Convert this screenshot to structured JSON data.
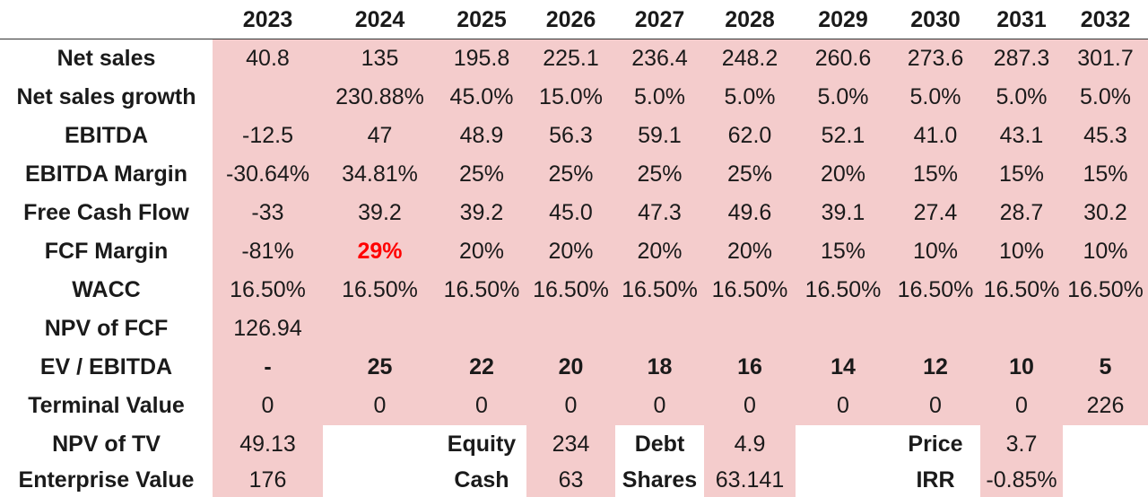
{
  "colors": {
    "fill": "#f4cccc",
    "highlight": "#ff0000",
    "text": "#1a1a1a"
  },
  "years": [
    "2023",
    "2024",
    "2025",
    "2026",
    "2027",
    "2028",
    "2029",
    "2030",
    "2031",
    "2032"
  ],
  "rows": [
    {
      "label": "Net sales",
      "values": [
        "40.8",
        "135",
        "195.8",
        "225.1",
        "236.4",
        "248.2",
        "260.6",
        "273.6",
        "287.3",
        "301.7"
      ]
    },
    {
      "label": "Net sales growth",
      "values": [
        "",
        "230.88%",
        "45.0%",
        "15.0%",
        "5.0%",
        "5.0%",
        "5.0%",
        "5.0%",
        "5.0%",
        "5.0%"
      ]
    },
    {
      "label": "EBITDA",
      "values": [
        "-12.5",
        "47",
        "48.9",
        "56.3",
        "59.1",
        "62.0",
        "52.1",
        "41.0",
        "43.1",
        "45.3"
      ]
    },
    {
      "label": "EBITDA Margin",
      "values": [
        "-30.64%",
        "34.81%",
        "25%",
        "25%",
        "25%",
        "25%",
        "20%",
        "15%",
        "15%",
        "15%"
      ]
    },
    {
      "label": "Free Cash Flow",
      "values": [
        "-33",
        "39.2",
        "39.2",
        "45.0",
        "47.3",
        "49.6",
        "39.1",
        "27.4",
        "28.7",
        "30.2"
      ]
    },
    {
      "label": "FCF Margin",
      "values": [
        "-81%",
        "29%",
        "20%",
        "20%",
        "20%",
        "20%",
        "15%",
        "10%",
        "10%",
        "10%"
      ]
    },
    {
      "label": "WACC",
      "values": [
        "16.50%",
        "16.50%",
        "16.50%",
        "16.50%",
        "16.50%",
        "16.50%",
        "16.50%",
        "16.50%",
        "16.50%",
        "16.50%"
      ]
    },
    {
      "label": "NPV of FCF",
      "values": [
        "126.94"
      ]
    },
    {
      "label": "EV / EBITDA",
      "values": [
        "-",
        "25",
        "22",
        "20",
        "18",
        "16",
        "14",
        "12",
        "10",
        "5"
      ]
    },
    {
      "label": "Terminal Value",
      "values": [
        "0",
        "0",
        "0",
        "0",
        "0",
        "0",
        "0",
        "0",
        "0",
        "226"
      ]
    },
    {
      "label": "NPV of TV",
      "value": "49.13"
    },
    {
      "label": "Enterprise Value",
      "value": "176"
    }
  ],
  "summary": {
    "equity": {
      "label": "Equity",
      "value": "234"
    },
    "debt": {
      "label": "Debt",
      "value": "4.9"
    },
    "price": {
      "label": "Price",
      "value": "3.7"
    },
    "cash": {
      "label": "Cash",
      "value": "63"
    },
    "shares": {
      "label": "Shares",
      "value": "63.141"
    },
    "irr": {
      "label": "IRR",
      "value": "-0.85%"
    }
  }
}
